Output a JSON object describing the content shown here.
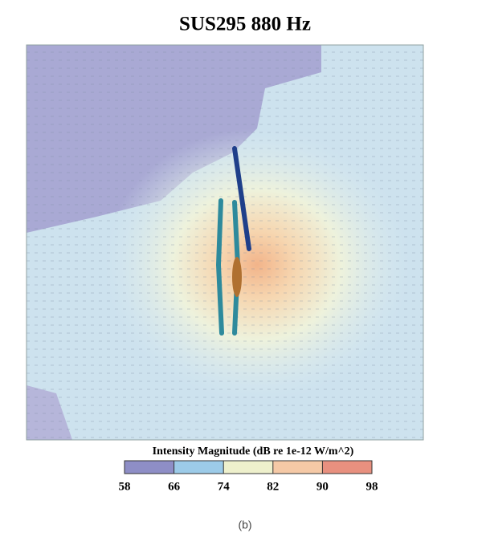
{
  "chart_data": {
    "type": "heatmap",
    "title": "SUS295 880 Hz",
    "colorbar": {
      "label": "Intensity Magnitude (dB re 1e-12 W/m^2)",
      "lim": [
        58,
        98
      ],
      "ticks": [
        58,
        66,
        74,
        82,
        90,
        98
      ],
      "colors": [
        "#8e8ec6",
        "#9ccbe8",
        "#eef0cc",
        "#f5c9a6",
        "#e8907f"
      ]
    },
    "caption": "(b)"
  }
}
